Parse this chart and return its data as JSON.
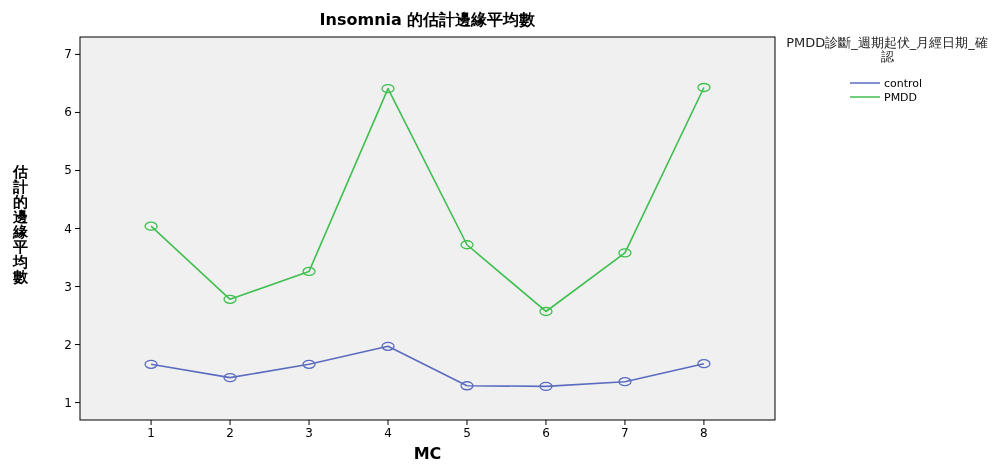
{
  "chart_data": {
    "type": "line",
    "title": "Insomnia 的估計邊緣平均數",
    "xlabel": "MC",
    "ylabel": "估計的邊緣平均數",
    "legend_title": "PMDD診斷_週期起伏_月經日期_確認",
    "x": [
      1,
      2,
      3,
      4,
      5,
      6,
      7,
      8
    ],
    "series": [
      {
        "name": "control",
        "color": "#5b6cc0",
        "values": [
          1.66,
          1.43,
          1.66,
          1.97,
          1.29,
          1.28,
          1.36,
          1.67
        ]
      },
      {
        "name": "PMDD",
        "color": "#3fbf4f",
        "values": [
          4.04,
          2.78,
          3.26,
          6.41,
          3.72,
          2.57,
          3.58,
          6.43
        ]
      }
    ],
    "xlim": [
      0.1,
      8.9
    ],
    "ylim": [
      0.7,
      7.3
    ],
    "xticks": [
      1,
      2,
      3,
      4,
      5,
      6,
      7,
      8
    ],
    "yticks": [
      1,
      2,
      3,
      4,
      5,
      6,
      7
    ],
    "marker": "circle",
    "line_style": "solid",
    "grid": false,
    "legend": "top right"
  }
}
